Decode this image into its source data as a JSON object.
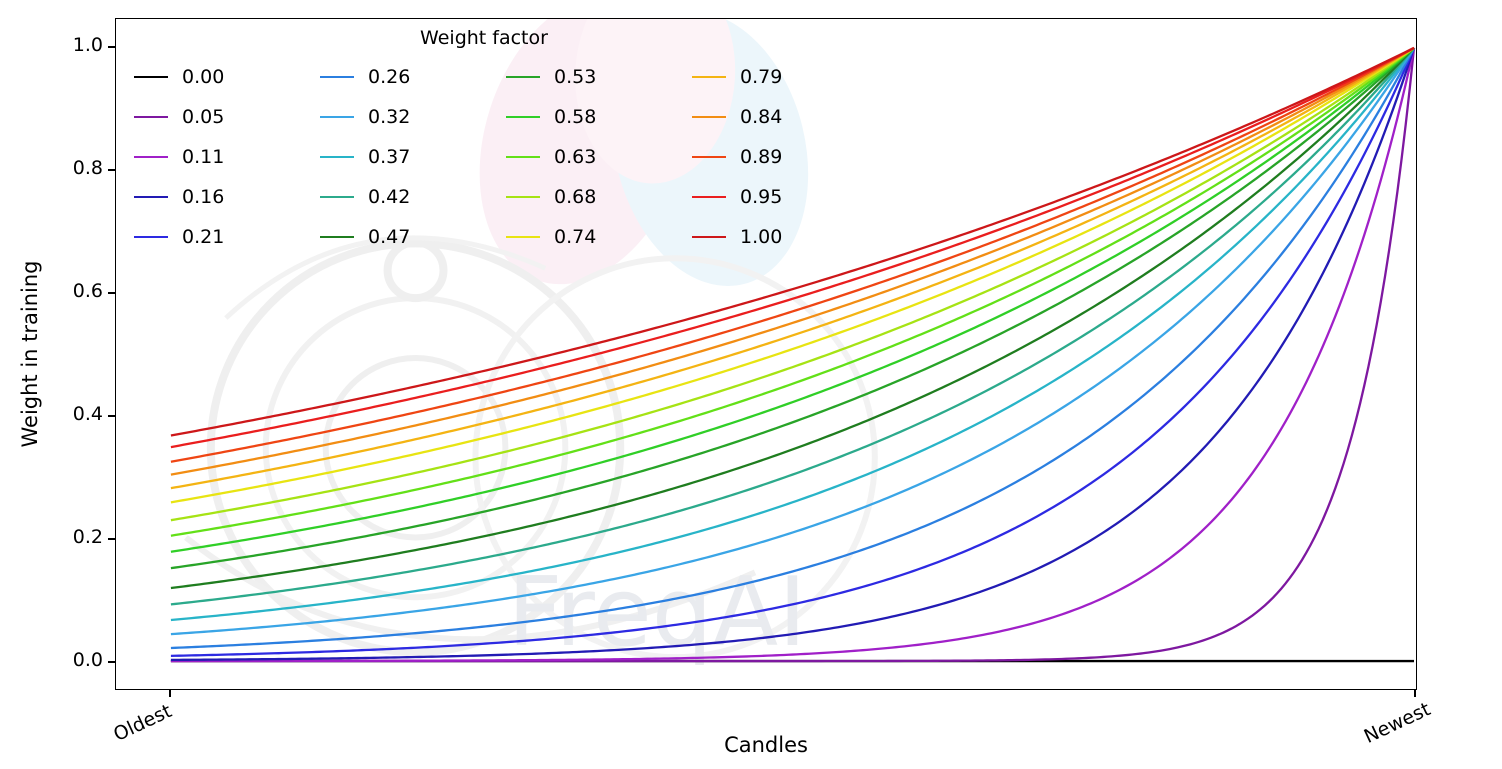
{
  "figure": {
    "background": "#ffffff",
    "watermark_text": "FreqAI"
  },
  "chart_data": {
    "type": "line",
    "title": "",
    "xlabel": "Candles",
    "ylabel": "Weight in training",
    "x_tick_labels": [
      "Oldest",
      "Newest"
    ],
    "y_ticks": [
      "0.0",
      "0.2",
      "0.4",
      "0.6",
      "0.8",
      "1.0"
    ],
    "ylim": [
      -0.05,
      1.05
    ],
    "x_range": [
      0,
      1
    ],
    "grid": false,
    "legend": {
      "title": "Weight factor",
      "position": "upper left",
      "columns": 4,
      "rows": 5
    },
    "curve_formula": "weight(x) = exp(-(1 - x) / factor) for x in [0,1]; factor = 0 gives constant weight 0",
    "series": [
      {
        "name": "0.00",
        "factor": 0.0,
        "color": "#000000",
        "value_at_oldest": 0.0,
        "value_at_newest": 0.0
      },
      {
        "name": "0.05",
        "factor": 0.05,
        "color": "#7e18a0",
        "value_at_oldest": 0.0,
        "value_at_newest": 1.0
      },
      {
        "name": "0.11",
        "factor": 0.11,
        "color": "#a020c8",
        "value_at_oldest": 0.0001,
        "value_at_newest": 1.0
      },
      {
        "name": "0.16",
        "factor": 0.16,
        "color": "#221bb4",
        "value_at_oldest": 0.0019,
        "value_at_newest": 1.0
      },
      {
        "name": "0.21",
        "factor": 0.21,
        "color": "#2d2ae2",
        "value_at_oldest": 0.0086,
        "value_at_newest": 1.0
      },
      {
        "name": "0.26",
        "factor": 0.26,
        "color": "#2b7fe0",
        "value_at_oldest": 0.021,
        "value_at_newest": 1.0
      },
      {
        "name": "0.32",
        "factor": 0.32,
        "color": "#3aa5e6",
        "value_at_oldest": 0.044,
        "value_at_newest": 1.0
      },
      {
        "name": "0.37",
        "factor": 0.37,
        "color": "#28b4c8",
        "value_at_oldest": 0.067,
        "value_at_newest": 1.0
      },
      {
        "name": "0.42",
        "factor": 0.42,
        "color": "#2caa8c",
        "value_at_oldest": 0.092,
        "value_at_newest": 1.0
      },
      {
        "name": "0.47",
        "factor": 0.47,
        "color": "#1f7d1f",
        "value_at_oldest": 0.119,
        "value_at_newest": 1.0
      },
      {
        "name": "0.53",
        "factor": 0.53,
        "color": "#28a428",
        "value_at_oldest": 0.152,
        "value_at_newest": 1.0
      },
      {
        "name": "0.58",
        "factor": 0.58,
        "color": "#30cf27",
        "value_at_oldest": 0.178,
        "value_at_newest": 1.0
      },
      {
        "name": "0.63",
        "factor": 0.63,
        "color": "#63e018",
        "value_at_oldest": 0.204,
        "value_at_newest": 1.0
      },
      {
        "name": "0.68",
        "factor": 0.68,
        "color": "#a6e314",
        "value_at_oldest": 0.23,
        "value_at_newest": 1.0
      },
      {
        "name": "0.74",
        "factor": 0.74,
        "color": "#e8e412",
        "value_at_oldest": 0.259,
        "value_at_newest": 1.0
      },
      {
        "name": "0.79",
        "factor": 0.79,
        "color": "#f4b413",
        "value_at_oldest": 0.282,
        "value_at_newest": 1.0
      },
      {
        "name": "0.84",
        "factor": 0.84,
        "color": "#f28d13",
        "value_at_oldest": 0.304,
        "value_at_newest": 1.0
      },
      {
        "name": "0.89",
        "factor": 0.89,
        "color": "#ef4513",
        "value_at_oldest": 0.325,
        "value_at_newest": 1.0
      },
      {
        "name": "0.95",
        "factor": 0.95,
        "color": "#ea1e1e",
        "value_at_oldest": 0.349,
        "value_at_newest": 1.0
      },
      {
        "name": "1.00",
        "factor": 1.0,
        "color": "#cd1719",
        "value_at_oldest": 0.368,
        "value_at_newest": 1.0
      }
    ]
  }
}
